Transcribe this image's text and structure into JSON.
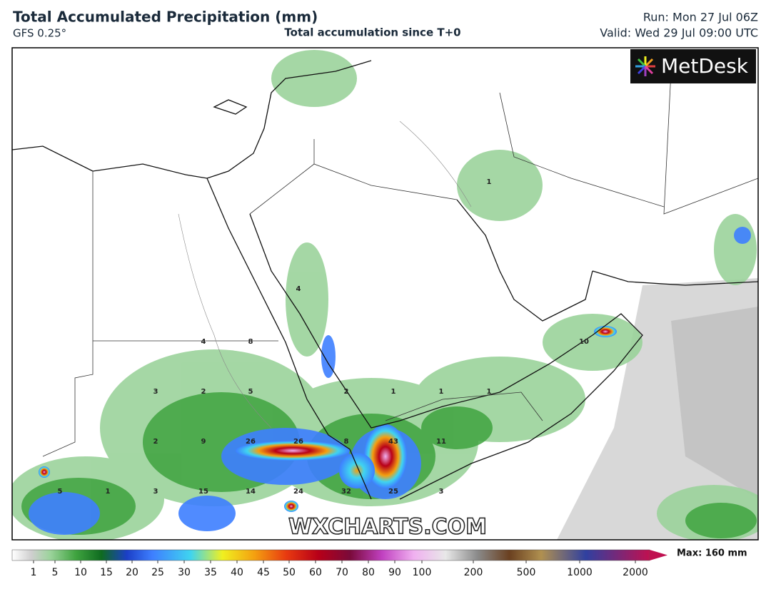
{
  "header": {
    "title": "Total Accumulated Precipitation (mm)",
    "model": "GFS 0.25°",
    "subtitle": "Total accumulation since T+0",
    "run": "Run: Mon 27 Jul 06Z",
    "valid": "Valid: Wed 29 Jul 09:00 UTC"
  },
  "map": {
    "logo": "MetDesk",
    "watermark": "WXCHARTS.COM",
    "point_labels": [
      1,
      4,
      4,
      8,
      10,
      3,
      2,
      5,
      2,
      1,
      1,
      1,
      2,
      9,
      26,
      26,
      8,
      43,
      11,
      5,
      1,
      3,
      15,
      14,
      24,
      32,
      25,
      3
    ]
  },
  "colorbar": {
    "ticks": [
      1,
      5,
      10,
      15,
      20,
      25,
      30,
      35,
      40,
      45,
      50,
      60,
      70,
      80,
      90,
      100,
      200,
      500,
      1000,
      2000
    ],
    "max_label": "Max: 160 mm"
  }
}
